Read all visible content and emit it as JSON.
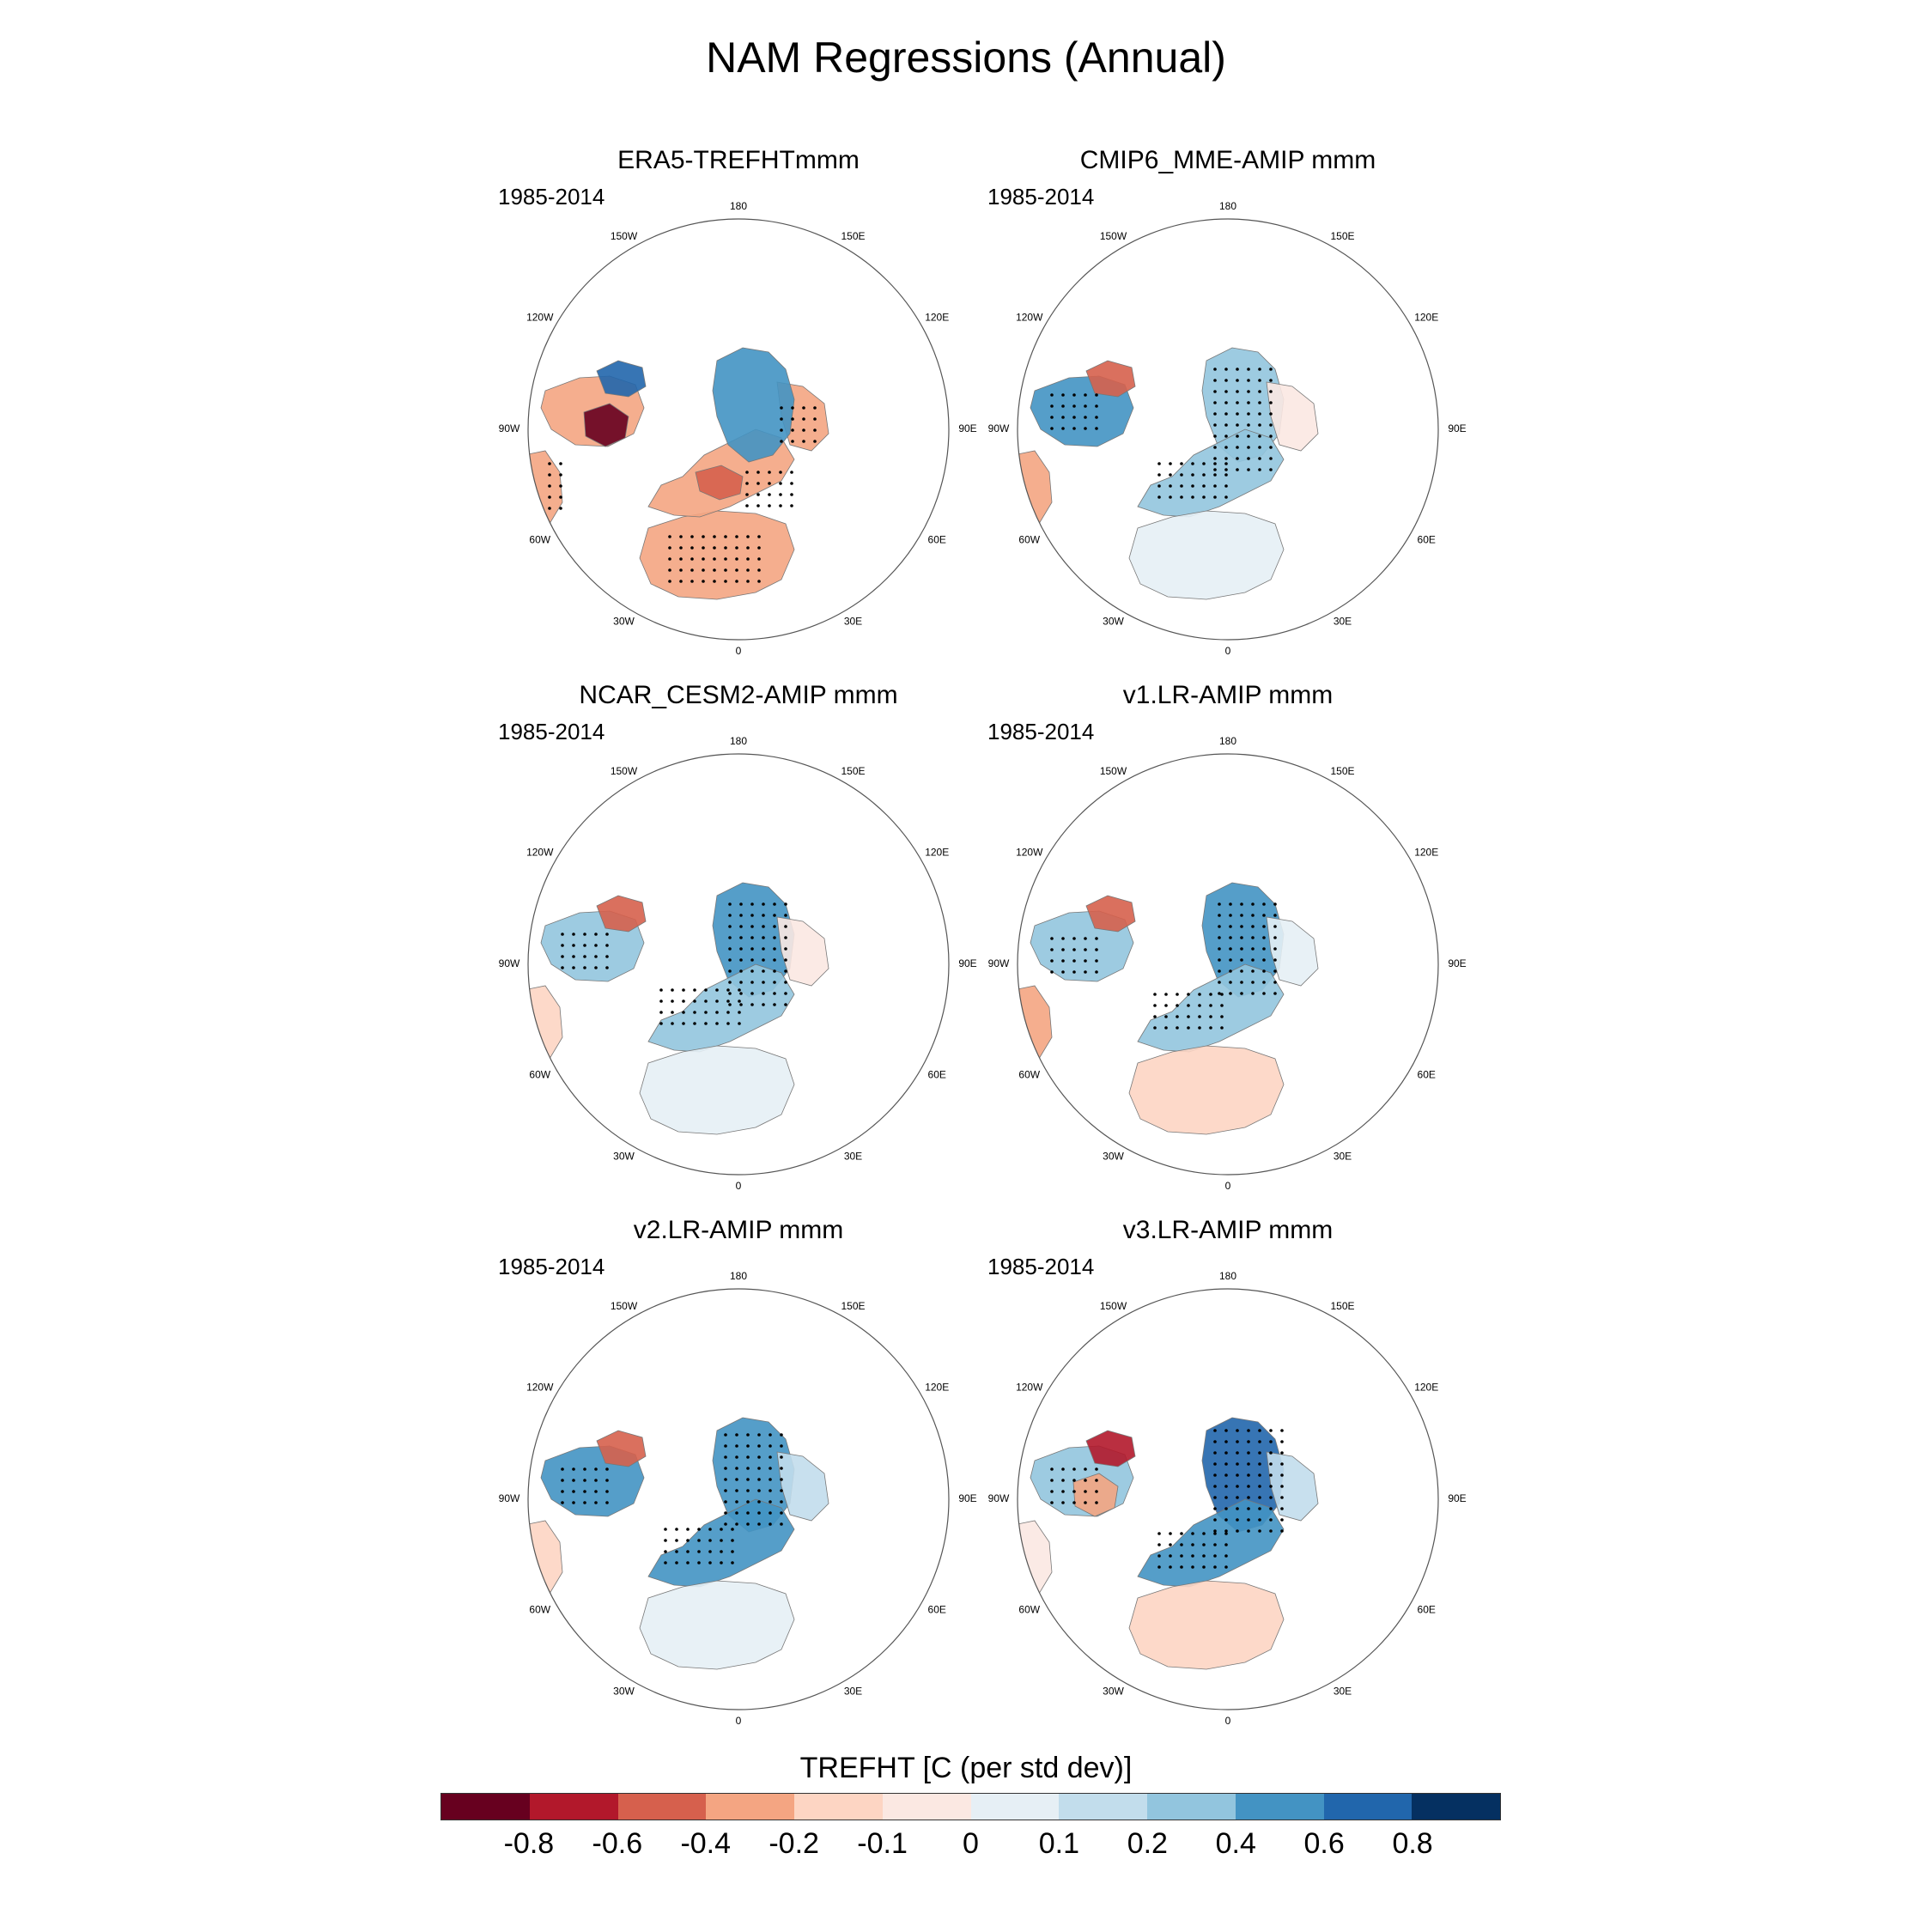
{
  "figure_title": "NAM Regressions (Annual)",
  "period": "1985-2014",
  "lon_labels": [
    "180",
    "150E",
    "120E",
    "90E",
    "60E",
    "30E",
    "0",
    "30W",
    "60W",
    "90W",
    "120W",
    "150W"
  ],
  "panels": [
    {
      "title": "ERA5-TREFHTmmm",
      "pattern": "era5"
    },
    {
      "title": "CMIP6_MME-AMIP  mmm",
      "pattern": "mme"
    },
    {
      "title": "NCAR_CESM2-AMIP  mmm",
      "pattern": "cesm2"
    },
    {
      "title": "v1.LR-AMIP  mmm",
      "pattern": "v1"
    },
    {
      "title": "v2.LR-AMIP  mmm",
      "pattern": "v2"
    },
    {
      "title": "v3.LR-AMIP  mmm",
      "pattern": "v3"
    }
  ],
  "colorbar": {
    "title": "TREFHT [C (per std dev)]",
    "ticks": [
      "-0.8",
      "-0.6",
      "-0.4",
      "-0.2",
      "-0.1",
      "0",
      "0.1",
      "0.2",
      "0.4",
      "0.6",
      "0.8"
    ],
    "colors": [
      "#67001f",
      "#b2182b",
      "#d6604d",
      "#f4a582",
      "#fdd5c3",
      "#fbe8e2",
      "#e6eff5",
      "#c2ddec",
      "#92c5de",
      "#4393c3",
      "#2166ac",
      "#053061"
    ]
  }
}
